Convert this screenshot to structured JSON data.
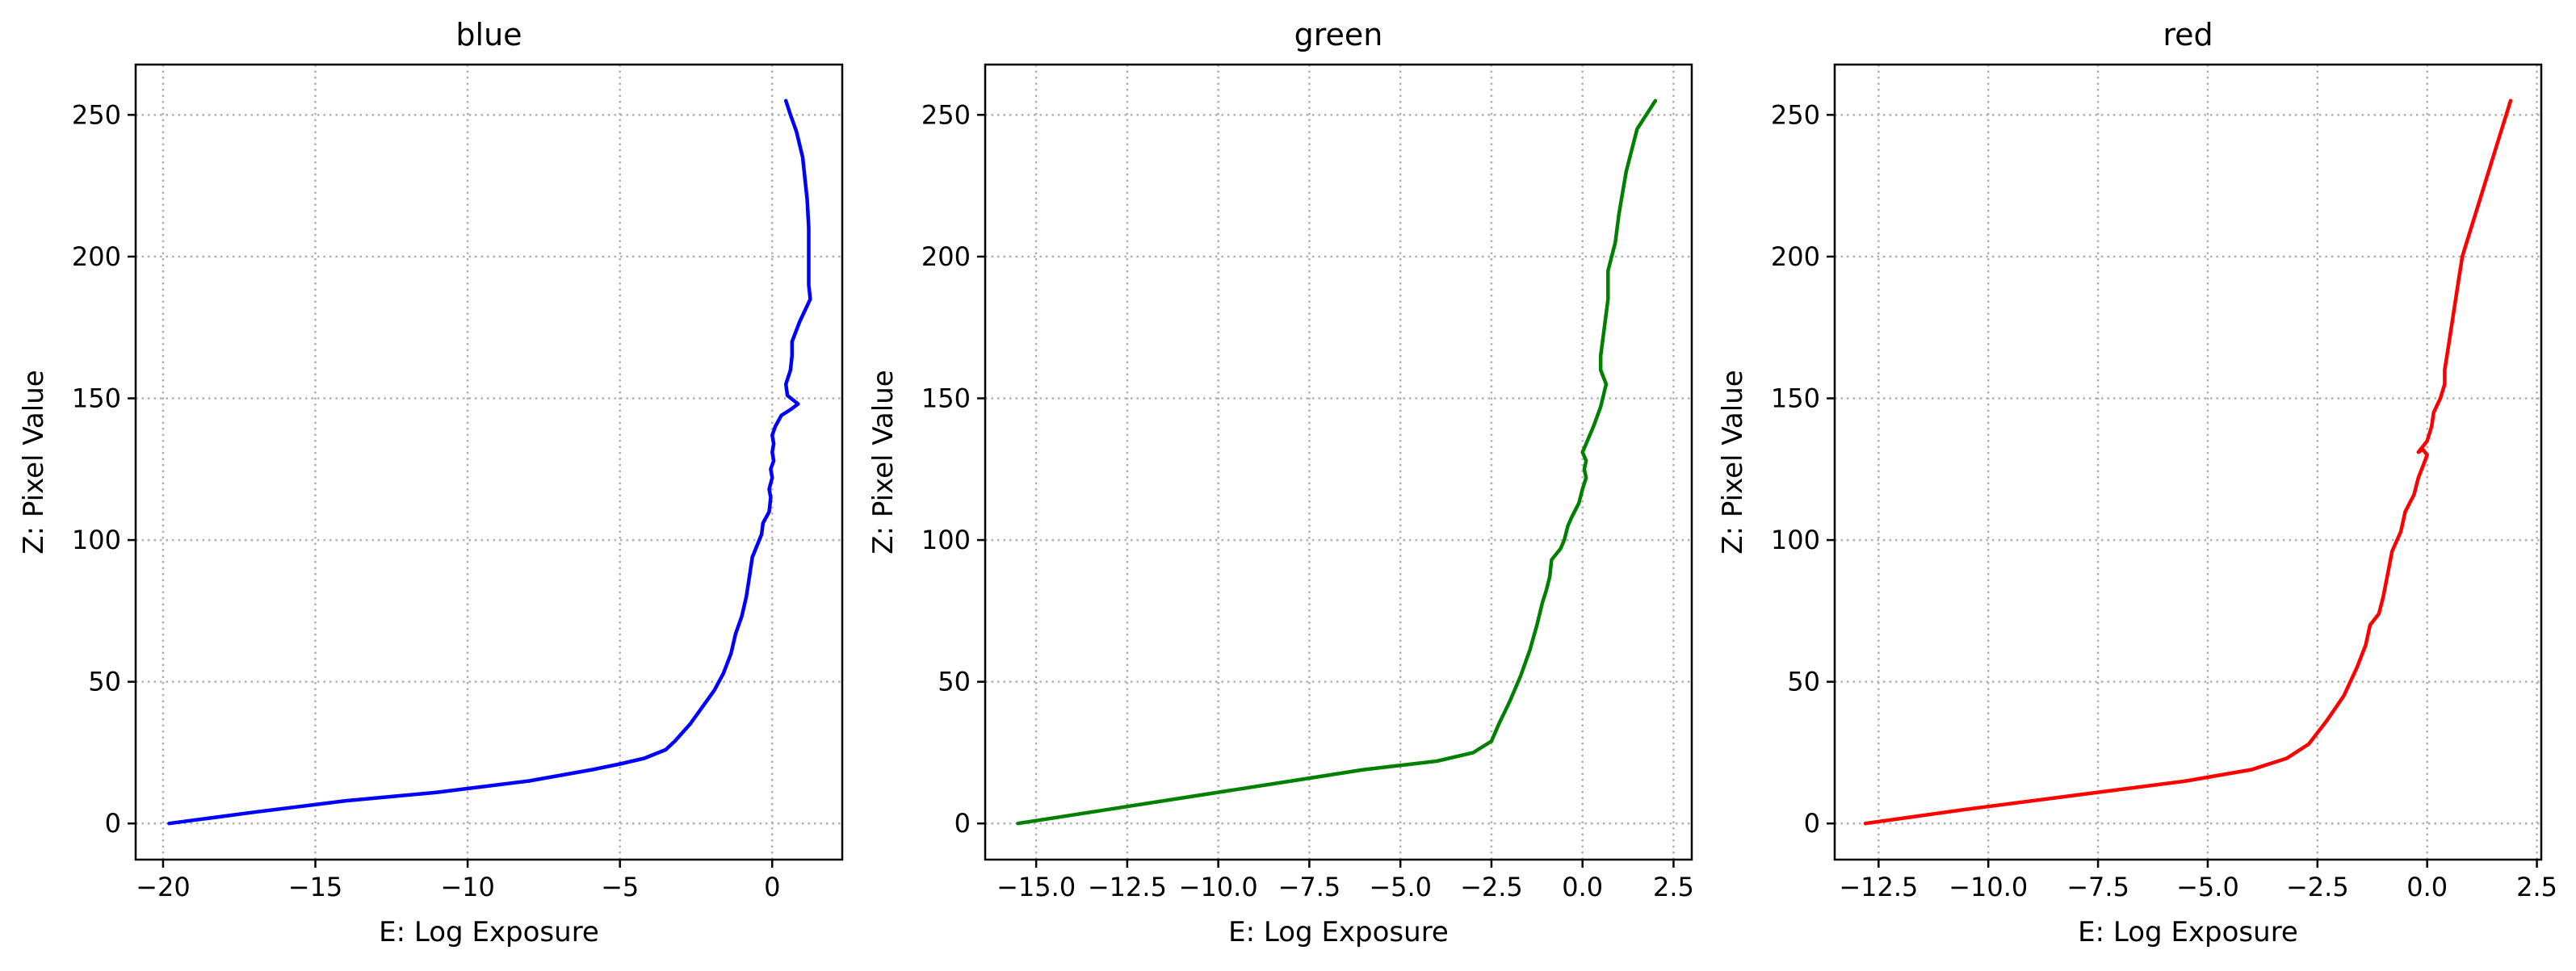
{
  "chart_data": [
    {
      "type": "line",
      "title": "blue",
      "xlabel": "E: Log Exposure",
      "ylabel": "Z: Pixel Value",
      "color": "#0000ff",
      "xlim": [
        -20.9,
        2.3
      ],
      "ylim": [
        -12.75,
        267.75
      ],
      "xticks": [
        -20,
        -15,
        -10,
        -5,
        0
      ],
      "xtick_labels": [
        "−20",
        "−15",
        "−10",
        "−5",
        "0"
      ],
      "yticks": [
        0,
        50,
        100,
        150,
        200,
        250
      ],
      "ytick_labels": [
        "0",
        "50",
        "100",
        "150",
        "200",
        "250"
      ],
      "grid": true,
      "series": [
        {
          "x": [
            -19.8,
            -17.0,
            -14.0,
            -11.0,
            -8.0,
            -5.9,
            -5.0,
            -4.2,
            -3.5,
            -3.2,
            -2.7,
            -2.3,
            -1.9,
            -1.6,
            -1.35,
            -1.2,
            -1.0,
            -0.85,
            -0.75,
            -0.65,
            -0.5,
            -0.35,
            -0.3,
            -0.1,
            -0.05,
            -0.1,
            0.0,
            -0.05,
            0.05,
            0.0,
            0.05,
            0.0,
            0.1,
            0.3,
            0.6,
            0.85,
            0.5,
            0.45,
            0.6,
            0.65,
            0.65,
            0.9,
            1.25,
            1.2,
            1.2,
            1.2,
            1.15,
            1.0,
            0.8,
            0.6,
            0.45
          ],
          "y": [
            0,
            4,
            8,
            11,
            15,
            19,
            21,
            23,
            26,
            29,
            35,
            41,
            47,
            53,
            60,
            67,
            73,
            80,
            87,
            94,
            98,
            102,
            106,
            110,
            115,
            118,
            122,
            125,
            128,
            131,
            134,
            137,
            140,
            144,
            146,
            148,
            151,
            155,
            160,
            165,
            170,
            177,
            185,
            190,
            200,
            210,
            220,
            235,
            244,
            250,
            255
          ]
        }
      ]
    },
    {
      "type": "line",
      "title": "green",
      "xlabel": "E: Log Exposure",
      "ylabel": "Z: Pixel Value",
      "color": "#008000",
      "xlim": [
        -16.4,
        3.0
      ],
      "ylim": [
        -12.75,
        267.75
      ],
      "xticks": [
        -15.0,
        -12.5,
        -10.0,
        -7.5,
        -5.0,
        -2.5,
        0.0,
        2.5
      ],
      "xtick_labels": [
        "−15.0",
        "−12.5",
        "−10.0",
        "−7.5",
        "−5.0",
        "−2.5",
        "0.0",
        "2.5"
      ],
      "yticks": [
        0,
        50,
        100,
        150,
        200,
        250
      ],
      "ytick_labels": [
        "0",
        "50",
        "100",
        "150",
        "200",
        "250"
      ],
      "grid": true,
      "series": [
        {
          "x": [
            -15.5,
            -13.0,
            -10.5,
            -8.0,
            -6.0,
            -4.0,
            -3.0,
            -2.5,
            -2.3,
            -2.0,
            -1.7,
            -1.45,
            -1.25,
            -1.1,
            -1.0,
            -0.9,
            -0.85,
            -0.6,
            -0.5,
            -0.4,
            -0.3,
            -0.1,
            0.0,
            0.1,
            0.05,
            0.1,
            0.0,
            0.1,
            0.3,
            0.5,
            0.65,
            0.5,
            0.5,
            0.6,
            0.7,
            0.7,
            0.9,
            1.0,
            1.2,
            1.5,
            2.0
          ],
          "y": [
            0,
            5,
            10,
            15,
            19,
            22,
            25,
            29,
            35,
            43,
            52,
            61,
            70,
            78,
            82,
            87,
            93,
            97,
            100,
            105,
            108,
            113,
            118,
            122,
            125,
            128,
            131,
            134,
            140,
            147,
            155,
            160,
            165,
            175,
            185,
            195,
            205,
            215,
            230,
            245,
            255
          ]
        }
      ]
    },
    {
      "type": "line",
      "title": "red",
      "xlabel": "E: Log Exposure",
      "ylabel": "Z: Pixel Value",
      "color": "#ff0000",
      "xlim": [
        -13.5,
        2.6
      ],
      "ylim": [
        -12.75,
        267.75
      ],
      "xticks": [
        -12.5,
        -10.0,
        -7.5,
        -5.0,
        -2.5,
        0.0,
        2.5
      ],
      "xtick_labels": [
        "−12.5",
        "−10.0",
        "−7.5",
        "−5.0",
        "−2.5",
        "0.0",
        "2.5"
      ],
      "yticks": [
        0,
        50,
        100,
        150,
        200,
        250
      ],
      "ytick_labels": [
        "0",
        "50",
        "100",
        "150",
        "200",
        "250"
      ],
      "grid": true,
      "series": [
        {
          "x": [
            -12.8,
            -10.5,
            -8.0,
            -5.5,
            -4.0,
            -3.2,
            -2.7,
            -2.3,
            -1.9,
            -1.6,
            -1.4,
            -1.3,
            -1.1,
            -1.0,
            -0.9,
            -0.8,
            -0.6,
            -0.5,
            -0.3,
            -0.2,
            -0.1,
            0.0,
            -0.1,
            -0.2,
            0.0,
            0.1,
            0.15,
            0.3,
            0.4,
            0.4,
            0.5,
            0.6,
            0.7,
            0.8,
            1.0,
            1.2,
            1.5,
            1.9
          ],
          "y": [
            0,
            5,
            10,
            15,
            19,
            23,
            28,
            36,
            45,
            55,
            63,
            70,
            74,
            80,
            88,
            96,
            103,
            110,
            116,
            122,
            126,
            130,
            132,
            131,
            135,
            140,
            145,
            150,
            155,
            160,
            170,
            180,
            190,
            200,
            210,
            220,
            235,
            255
          ]
        }
      ]
    }
  ]
}
